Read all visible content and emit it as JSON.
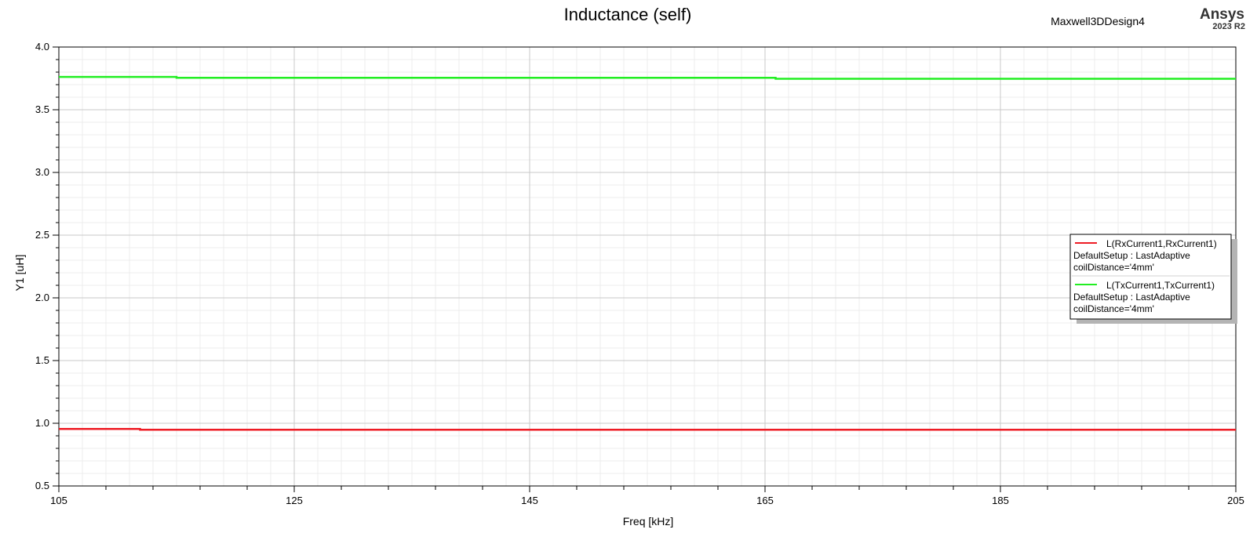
{
  "header": {
    "design_name": "Maxwell3DDesign4",
    "brand": "Ansys",
    "version": "2023 R2"
  },
  "chart_data": {
    "type": "line",
    "title": "Inductance (self)",
    "xlabel": "Freq [kHz]",
    "ylabel": "Y1 [uH]",
    "xlim": [
      105,
      205
    ],
    "ylim": [
      0.5,
      4.0
    ],
    "x_ticks": [
      "105",
      "125",
      "145",
      "165",
      "185",
      "205"
    ],
    "y_ticks": [
      "0.5",
      "1.0",
      "1.5",
      "2.0",
      "2.5",
      "3.0",
      "3.5",
      "4.0"
    ],
    "grid": true,
    "legend_position": "right",
    "series": [
      {
        "name": "L(RxCurrent1,RxCurrent1)",
        "setup": "DefaultSetup : LastAdaptive",
        "variation": "coilDistance='4mm'",
        "color": "#ee1c25",
        "x": [
          105,
          111.9,
          111.9,
          205
        ],
        "y": [
          0.955,
          0.955,
          0.948,
          0.948
        ]
      },
      {
        "name": "L(TxCurrent1,TxCurrent1)",
        "setup": "DefaultSetup : LastAdaptive",
        "variation": "coilDistance='4mm'",
        "color": "#22ee22",
        "x": [
          105,
          115,
          115,
          165.9,
          165.9,
          205
        ],
        "y": [
          3.762,
          3.762,
          3.755,
          3.755,
          3.747,
          3.747
        ]
      }
    ]
  }
}
